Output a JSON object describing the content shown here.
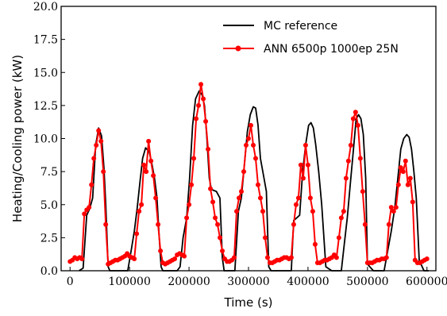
{
  "chart_data": {
    "type": "line",
    "title": "",
    "xlabel": "Time (s)",
    "ylabel": "Heating/Cooling power (kW)",
    "xlim": [
      -15000,
      615000
    ],
    "ylim": [
      0,
      20
    ],
    "xticks": [
      0,
      100000,
      200000,
      300000,
      400000,
      500000,
      600000
    ],
    "xtick_labels": [
      "0",
      "100000",
      "200000",
      "300000",
      "400000",
      "500000",
      "600000"
    ],
    "yticks": [
      0,
      2.5,
      5,
      7.5,
      10,
      12.5,
      15,
      17.5,
      20
    ],
    "ytick_labels": [
      "0.0",
      "2.5",
      "5.0",
      "7.5",
      "10.0",
      "12.5",
      "15.0",
      "17.5",
      "20.0"
    ],
    "grid": false,
    "legend_position": "top-right",
    "series": [
      {
        "name": "MC reference",
        "color": "#000000",
        "marker": "none",
        "x": [
          15000,
          22000,
          28000,
          33000,
          38000,
          43000,
          48000,
          53000,
          57000,
          60000,
          64000,
          67000,
          72000,
          80000,
          90000,
          97000,
          103000,
          108000,
          113000,
          117000,
          122000,
          127000,
          133000,
          138000,
          142000,
          146000,
          150000,
          153000,
          156000,
          160000,
          170000,
          180000,
          185000,
          190000,
          196000,
          201000,
          206000,
          211000,
          217000,
          222000,
          226000,
          230000,
          234000,
          237000,
          240000,
          246000,
          252000,
          256000,
          259000,
          262000,
          270000,
          277000,
          283000,
          288000,
          293000,
          298000,
          303000,
          308000,
          312000,
          316000,
          320000,
          326000,
          330000,
          334000,
          338000,
          345000,
          353000,
          360000,
          366000,
          372000,
          376000,
          381000,
          386000,
          391000,
          396000,
          401000,
          405000,
          409000,
          413000,
          418000,
          423000,
          430000,
          440000,
          450000,
          456000,
          461000,
          466000,
          471000,
          476000,
          481000,
          485000,
          489000,
          493000,
          497000,
          500000,
          510000,
          520000,
          528000,
          534000,
          540000,
          546000,
          551000,
          556000,
          561000,
          566000,
          570000,
          574000,
          578000,
          582000,
          587000,
          595000,
          603000
        ],
        "y": [
          0.0,
          0.2,
          4.2,
          4.7,
          5.5,
          9.5,
          10.8,
          10.2,
          7.8,
          5.0,
          0.3,
          0.0,
          0.0,
          0.0,
          0.0,
          0.0,
          1.6,
          3.0,
          4.8,
          6.5,
          8.5,
          9.3,
          9.0,
          8.0,
          7.0,
          5.6,
          2.5,
          0.3,
          0.0,
          0.0,
          0.0,
          0.0,
          0.3,
          2.5,
          4.0,
          7.0,
          11.0,
          13.0,
          13.6,
          13.3,
          12.5,
          10.0,
          7.0,
          6.3,
          6.1,
          6.0,
          5.5,
          1.0,
          0.0,
          0.0,
          0.0,
          0.0,
          4.5,
          5.5,
          8.0,
          10.5,
          11.8,
          12.4,
          12.3,
          11.0,
          8.5,
          7.0,
          6.0,
          0.3,
          0.0,
          0.0,
          0.0,
          0.0,
          0.0,
          0.0,
          3.8,
          4.0,
          4.2,
          7.5,
          9.5,
          11.0,
          11.2,
          10.8,
          9.5,
          7.5,
          5.0,
          0.3,
          0.0,
          0.0,
          0.0,
          2.0,
          4.0,
          6.5,
          9.0,
          11.5,
          11.8,
          11.5,
          10.3,
          7.0,
          0.5,
          0.0,
          0.0,
          0.0,
          1.5,
          3.0,
          4.8,
          7.0,
          9.2,
          10.0,
          10.3,
          10.1,
          9.2,
          7.5,
          5.5,
          0.8,
          0.0,
          0.0
        ]
      },
      {
        "name": "ANN 6500p 1000ep 25N",
        "color": "#ff0000",
        "marker": "circle",
        "x": [
          0,
          4000,
          8000,
          12000,
          16000,
          20000,
          24000,
          28000,
          32000,
          36000,
          40000,
          44000,
          48000,
          52000,
          56000,
          60000,
          64000,
          68000,
          72000,
          76000,
          80000,
          84000,
          88000,
          92000,
          96000,
          100000,
          104000,
          108000,
          112000,
          116000,
          120000,
          124000,
          128000,
          132000,
          136000,
          140000,
          144000,
          148000,
          152000,
          156000,
          160000,
          164000,
          168000,
          172000,
          176000,
          180000,
          184000,
          188000,
          192000,
          196000,
          200000,
          204000,
          208000,
          212000,
          216000,
          220000,
          224000,
          228000,
          232000,
          236000,
          240000,
          244000,
          248000,
          252000,
          256000,
          260000,
          264000,
          268000,
          272000,
          276000,
          280000,
          284000,
          288000,
          292000,
          296000,
          300000,
          304000,
          308000,
          312000,
          316000,
          320000,
          324000,
          328000,
          332000,
          336000,
          340000,
          344000,
          348000,
          352000,
          356000,
          360000,
          364000,
          368000,
          372000,
          376000,
          380000,
          384000,
          388000,
          392000,
          396000,
          400000,
          404000,
          408000,
          412000,
          416000,
          420000,
          424000,
          428000,
          432000,
          436000,
          440000,
          444000,
          448000,
          452000,
          456000,
          460000,
          464000,
          468000,
          472000,
          476000,
          480000,
          484000,
          488000,
          492000,
          496000,
          500000,
          504000,
          508000,
          512000,
          516000,
          520000,
          524000,
          528000,
          532000,
          536000,
          540000,
          544000,
          548000,
          552000,
          556000,
          560000,
          564000,
          568000,
          572000,
          576000,
          580000,
          584000,
          588000,
          592000,
          596000,
          600000
        ],
        "y": [
          0.7,
          0.8,
          1.0,
          0.9,
          1.0,
          0.9,
          4.3,
          4.6,
          4.8,
          6.5,
          8.5,
          9.5,
          10.6,
          9.8,
          7.5,
          3.5,
          0.5,
          0.6,
          0.7,
          0.8,
          0.8,
          0.9,
          1.0,
          1.1,
          1.3,
          1.1,
          1.0,
          0.9,
          2.8,
          4.5,
          5.0,
          8.0,
          7.5,
          9.8,
          8.3,
          7.2,
          5.5,
          3.5,
          1.5,
          0.6,
          0.5,
          0.6,
          0.7,
          0.8,
          0.9,
          1.2,
          1.3,
          1.2,
          1.1,
          4.0,
          5.0,
          6.5,
          8.5,
          11.5,
          12.5,
          14.1,
          13.0,
          11.3,
          9.2,
          6.2,
          5.2,
          4.0,
          3.5,
          2.5,
          1.5,
          0.9,
          0.7,
          0.7,
          0.8,
          1.0,
          4.5,
          5.5,
          6.0,
          7.5,
          9.5,
          10.0,
          11.0,
          9.5,
          8.5,
          6.5,
          5.5,
          4.5,
          2.5,
          1.0,
          0.6,
          0.6,
          0.7,
          0.8,
          0.8,
          0.9,
          1.0,
          1.0,
          0.9,
          1.0,
          3.5,
          5.0,
          5.5,
          8.0,
          7.0,
          9.5,
          8.0,
          5.5,
          4.5,
          2.0,
          0.6,
          0.6,
          0.7,
          0.8,
          0.8,
          0.9,
          1.0,
          1.2,
          1.0,
          2.5,
          4.0,
          4.5,
          7.0,
          8.3,
          9.5,
          11.5,
          12.0,
          11.0,
          8.5,
          6.0,
          3.5,
          0.6,
          0.6,
          0.6,
          0.7,
          0.8,
          0.8,
          0.9,
          0.9,
          1.0,
          3.5,
          4.8,
          4.5,
          4.8,
          6.5,
          7.8,
          7.5,
          8.3,
          6.5,
          7.0,
          5.2,
          0.8,
          0.6,
          0.6,
          0.7,
          0.8,
          0.9
        ]
      }
    ]
  }
}
